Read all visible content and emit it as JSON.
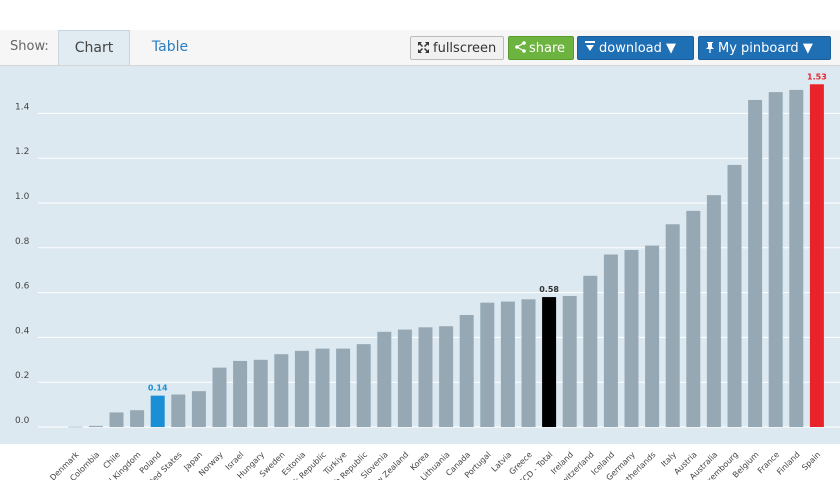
{
  "toolbar": {
    "show_label": "Show:",
    "tabs": [
      {
        "label": "Chart"
      },
      {
        "label": "Table"
      }
    ],
    "fullscreen_label": "fullscreen",
    "share_label": "share",
    "download_label": "download ▼",
    "pinboard_label": "My pinboard ▼"
  },
  "chart_data": {
    "type": "bar",
    "ylim": [
      0,
      1.6
    ],
    "yticks": [
      0.0,
      0.2,
      0.4,
      0.6,
      0.8,
      1.0,
      1.2,
      1.4
    ],
    "grid": true,
    "categories": [
      "Denmark",
      "Colombia",
      "Chile",
      "United Kingdom",
      "Poland",
      "United States",
      "Japan",
      "Norway",
      "Israel",
      "Hungary",
      "Sweden",
      "Estonia",
      "Slovak Republic",
      "Türkiye",
      "Czech Republic",
      "Slovenia",
      "New Zealand",
      "Korea",
      "Lithuania",
      "Canada",
      "Portugal",
      "Latvia",
      "Greece",
      "OECD - Total",
      "Ireland",
      "Switzerland",
      "Iceland",
      "Germany",
      "Netherlands",
      "Italy",
      "Austria",
      "Australia",
      "Luxembourg",
      "Belgium",
      "France",
      "Finland",
      "Spain"
    ],
    "values": [
      0.0,
      0.005,
      0.065,
      0.075,
      0.14,
      0.145,
      0.16,
      0.265,
      0.295,
      0.3,
      0.325,
      0.34,
      0.35,
      0.35,
      0.37,
      0.425,
      0.435,
      0.445,
      0.45,
      0.5,
      0.555,
      0.56,
      0.57,
      0.58,
      0.585,
      0.675,
      0.77,
      0.79,
      0.81,
      0.905,
      0.965,
      1.035,
      1.17,
      1.46,
      1.495,
      1.505,
      1.53
    ],
    "highlights": [
      {
        "category": "Poland",
        "color": "#1a8fd6",
        "label": "0.14"
      },
      {
        "category": "OECD - Total",
        "color": "#000000",
        "label": "0.58"
      },
      {
        "category": "Spain",
        "color": "#e8232a",
        "label": "1.53"
      }
    ],
    "bar_color": "#95a8b3"
  }
}
